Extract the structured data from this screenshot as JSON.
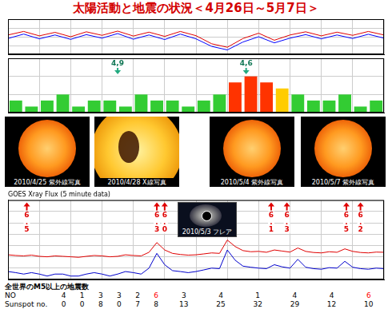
{
  "title": "太陽活動と地震の状況＜4月26日～5月7日＞",
  "chart_data": [
    {
      "type": "line",
      "x": [
        0,
        0.5,
        1,
        1.5,
        2,
        2.5,
        3,
        3.5,
        4,
        4.5,
        5,
        5.5,
        6,
        6.5,
        7,
        7.5,
        8,
        8.5,
        9,
        9.5,
        10,
        10.5,
        11,
        11.5,
        12
      ],
      "xlim": [
        0,
        12
      ],
      "xticks": [
        0,
        1,
        2,
        3,
        4,
        5,
        6,
        7,
        8,
        9,
        10,
        11,
        12
      ],
      "ylim": [
        0,
        200
      ],
      "yticks": [
        0,
        50,
        100,
        150,
        200
      ],
      "grid": true,
      "tick_labels": false,
      "series": [
        {
          "color": "#e00000",
          "values": [
            110,
            130,
            105,
            125,
            100,
            128,
            108,
            132,
            104,
            126,
            102,
            130,
            106,
            60,
            40,
            90,
            120,
            80,
            110,
            128,
            105,
            126,
            108,
            130,
            110
          ]
        },
        {
          "color": "#0000ff",
          "values": [
            90,
            115,
            88,
            110,
            85,
            112,
            92,
            118,
            86,
            110,
            84,
            115,
            88,
            45,
            25,
            70,
            100,
            65,
            92,
            112,
            88,
            110,
            90,
            114,
            92
          ]
        }
      ]
    },
    {
      "type": "bar",
      "x": [
        0.25,
        0.75,
        1.25,
        1.75,
        2.25,
        2.75,
        3.25,
        3.75,
        4.25,
        4.75,
        5.25,
        5.75,
        6.25,
        6.75,
        7.25,
        7.75,
        8.25,
        8.75,
        9.25,
        9.75,
        10.25,
        10.75,
        11.25,
        11.75
      ],
      "values": [
        2,
        1,
        2,
        3,
        1,
        2,
        2,
        1,
        3,
        2,
        2,
        1,
        2,
        3,
        5,
        6,
        5,
        4,
        3,
        2,
        2,
        3,
        1,
        2
      ],
      "colors": [
        "#33cc33",
        "#33cc33",
        "#33cc33",
        "#33cc33",
        "#33cc33",
        "#33cc33",
        "#33cc33",
        "#33cc33",
        "#33cc33",
        "#33cc33",
        "#33cc33",
        "#33cc33",
        "#33cc33",
        "#33cc33",
        "#ff3300",
        "#ff3300",
        "#ff3300",
        "#ffcc00",
        "#33cc33",
        "#33cc33",
        "#33cc33",
        "#33cc33",
        "#33cc33",
        "#33cc33"
      ],
      "xlim": [
        0,
        12
      ],
      "xticks": [
        0,
        1,
        2,
        3,
        4,
        5,
        6,
        7,
        8,
        9,
        10,
        11,
        12
      ],
      "ylim": [
        0,
        9
      ],
      "yticks": [
        0,
        3,
        6,
        9
      ],
      "grid": true,
      "tick_labels": false,
      "annotations": [
        {
          "x": 3.5,
          "label": "4,9"
        },
        {
          "x": 7.6,
          "label": "4,6"
        }
      ]
    },
    {
      "type": "line",
      "title": "GOES Xray Flux (5 minute data)",
      "x": [
        0,
        0.25,
        0.5,
        0.75,
        1,
        1.25,
        1.5,
        1.75,
        2,
        2.25,
        2.5,
        2.75,
        3,
        3.25,
        3.5,
        3.75,
        4,
        4.25,
        4.5,
        4.75,
        5,
        5.25,
        5.5,
        5.75,
        6,
        6.25,
        6.5,
        6.75,
        7,
        7.25,
        7.5,
        7.75,
        8,
        8.25,
        8.5,
        8.75,
        9,
        9.25,
        9.5,
        9.75,
        10,
        10.25,
        10.5,
        10.75,
        11,
        11.25,
        11.5,
        11.75,
        12
      ],
      "xlim": [
        0,
        12
      ],
      "xticks": [
        0,
        1,
        2,
        3,
        4,
        5,
        6,
        7,
        8,
        9,
        10,
        11,
        12
      ],
      "log": "y",
      "ylim": [
        1e-09,
        0.01
      ],
      "yticks": [
        1e-09,
        1e-08,
        1e-07,
        1e-06,
        1e-05,
        0.0001,
        0.001,
        0.01
      ],
      "grid": true,
      "tick_labels": false,
      "series": [
        {
          "color": "#e00000",
          "values": [
            1.5e-07,
            1.3e-07,
            1.2e-07,
            1.4e-07,
            1.1e-07,
            1e-07,
            1.2e-07,
            1.1e-07,
            1e-07,
            9e-08,
            1.1e-07,
            1.3e-07,
            1.2e-07,
            1e-07,
            1.1e-07,
            1.5e-07,
            1.3e-07,
            1.2e-07,
            2.5e-07,
            1.8e-06,
            4e-07,
            2e-07,
            1.6e-07,
            1.4e-07,
            1.5e-07,
            1.8e-07,
            2.2e-07,
            2e-07,
            3e-06,
            8e-07,
            3.5e-07,
            2.8e-07,
            3e-07,
            2.5e-07,
            4e-07,
            3.2e-07,
            2.6e-07,
            6e-07,
            3e-07,
            2.4e-07,
            2.2e-07,
            2.8e-07,
            2.5e-07,
            5e-07,
            3e-07,
            2.4e-07,
            2.2e-07,
            2.6e-07,
            2.5e-07
          ]
        },
        {
          "color": "#0000cc",
          "values": [
            5e-09,
            4e-09,
            3e-09,
            4e-09,
            3e-09,
            2e-09,
            3e-09,
            3e-09,
            2e-09,
            2e-09,
            3e-09,
            4e-09,
            3e-09,
            2e-09,
            3e-09,
            5e-09,
            4e-09,
            3e-09,
            1e-08,
            2e-07,
            2e-08,
            6e-09,
            5e-09,
            4e-09,
            5e-09,
            7e-09,
            1e-08,
            9e-09,
            4e-07,
            5e-08,
            1.5e-08,
            1.2e-08,
            1e-08,
            9e-09,
            2e-08,
            1.3e-08,
            1e-08,
            6e-08,
            1.2e-08,
            9e-09,
            8e-09,
            1.1e-08,
            1e-08,
            4e-08,
            1.2e-08,
            9e-09,
            8e-09,
            1e-08,
            9e-09
          ]
        }
      ],
      "earthquakes": {
        "x": [
          0.6,
          4.75,
          5.0,
          8.4,
          8.9,
          10.8,
          11.25
        ],
        "values": [
          6.5,
          6.3,
          6.0,
          6.1,
          6.3,
          6.5,
          6.2
        ]
      }
    }
  ],
  "photos": [
    {
      "caption": "2010/4/25 紫外線写真"
    },
    {
      "caption": "2010/4/28 X線写真"
    },
    {
      "caption": "2010/5/4 紫外線写真"
    },
    {
      "caption": "2010/5/7 紫外線写真"
    }
  ],
  "flare_inset": {
    "caption": "2010/5/3 フレア"
  },
  "table": {
    "title": "全世界のM5以上の地震数",
    "rows": [
      {
        "label": "NO",
        "values": [
          4,
          1,
          3,
          3,
          2,
          6,
          3,
          4,
          1,
          4,
          4,
          6
        ],
        "colors": [
          "#000000",
          "#000000",
          "#000000",
          "#000000",
          "#000000",
          "#ff0000",
          "#000000",
          "#000000",
          "#000000",
          "#000000",
          "#000000",
          "#ff0000"
        ]
      },
      {
        "label": "Sunspot no.",
        "values": [
          0,
          0,
          8,
          0,
          7,
          8,
          13,
          25,
          32,
          29,
          12,
          10
        ]
      }
    ]
  }
}
